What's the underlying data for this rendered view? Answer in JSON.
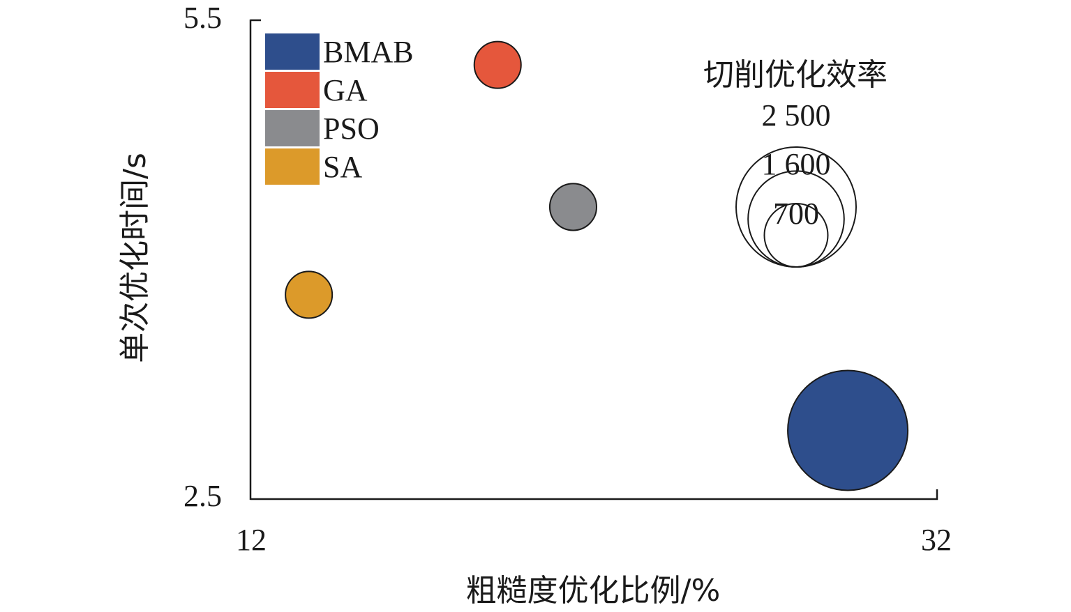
{
  "chart_data": {
    "type": "scatter",
    "xlabel": "粗糙度优化比例/%",
    "ylabel": "单次优化时间/s",
    "xlim": [
      12,
      32
    ],
    "ylim": [
      2.5,
      5.5
    ],
    "x_ticks": [
      "12",
      "32"
    ],
    "y_ticks": [
      "5.5",
      "2.5"
    ],
    "legend_position": "top-left",
    "size_legend": {
      "title": "切削优化效率",
      "labels": [
        "2 500",
        "1 600",
        "700"
      ],
      "values": [
        2500,
        1600,
        700
      ]
    },
    "series": [
      {
        "name": "BMAB",
        "color": "#2e4e8c",
        "x": 29.4,
        "y": 2.93,
        "size": 2500
      },
      {
        "name": "GA",
        "color": "#e5573c",
        "x": 19.2,
        "y": 5.22,
        "size": 380
      },
      {
        "name": "PSO",
        "color": "#8a8b8e",
        "x": 21.4,
        "y": 4.33,
        "size": 380
      },
      {
        "name": "SA",
        "color": "#dc9a2a",
        "x": 13.7,
        "y": 3.78,
        "size": 380
      }
    ]
  }
}
